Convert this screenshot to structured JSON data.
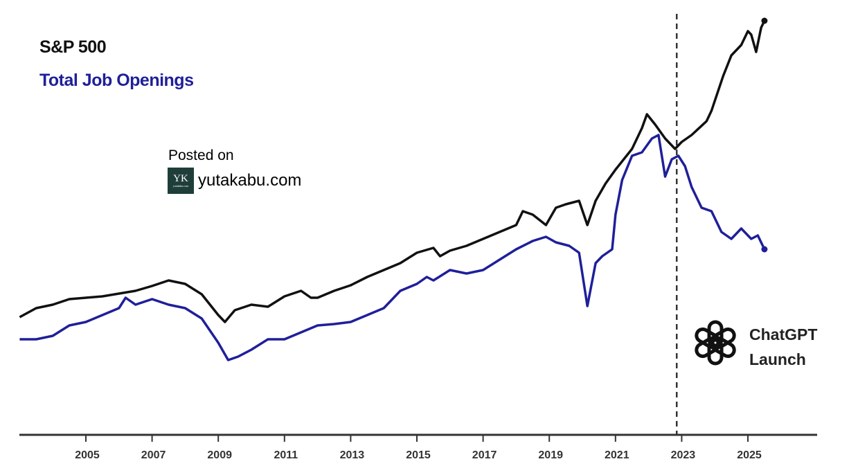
{
  "chart_data": {
    "type": "line",
    "title": "",
    "xlabel": "",
    "ylabel": "",
    "xlim": [
      2003.0,
      2025.9
    ],
    "ylim": [
      0,
      600
    ],
    "grid": false,
    "x_ticks": [
      2005,
      2007,
      2009,
      2011,
      2013,
      2015,
      2017,
      2019,
      2021,
      2023,
      2025
    ],
    "legend": {
      "placement": "top-left",
      "entries": [
        "S&P 500",
        "Total Job Openings"
      ]
    },
    "series": [
      {
        "name": "S&P 500",
        "color": "#111111",
        "x": [
          2003.0,
          2003.5,
          2004,
          2004.5,
          2005,
          2005.5,
          2006,
          2006.5,
          2007,
          2007.5,
          2008,
          2008.5,
          2009.0,
          2009.2,
          2009.5,
          2010,
          2010.5,
          2011,
          2011.5,
          2011.8,
          2012,
          2012.5,
          2013,
          2013.5,
          2014,
          2014.5,
          2015,
          2015.5,
          2015.7,
          2016,
          2016.5,
          2017,
          2017.5,
          2018,
          2018.2,
          2018.5,
          2018.9,
          2019.2,
          2019.5,
          2019.9,
          2020.15,
          2020.4,
          2020.7,
          2021,
          2021.5,
          2021.8,
          2021.95,
          2022.2,
          2022.5,
          2022.8,
          2023.0,
          2023.3,
          2023.75,
          2023.9,
          2024.25,
          2024.5,
          2024.8,
          2025.0,
          2025.1,
          2025.25,
          2025.4,
          2025.5
        ],
        "y": [
          170,
          183,
          188,
          196,
          198,
          200,
          204,
          208,
          215,
          223,
          218,
          203,
          173,
          163,
          180,
          188,
          185,
          200,
          208,
          198,
          198,
          208,
          216,
          228,
          238,
          248,
          263,
          270,
          258,
          266,
          273,
          283,
          293,
          303,
          323,
          318,
          303,
          328,
          333,
          338,
          303,
          338,
          363,
          383,
          413,
          443,
          463,
          448,
          428,
          413,
          423,
          433,
          453,
          468,
          518,
          548,
          563,
          583,
          578,
          553,
          588,
          598
        ]
      },
      {
        "name": "Total Job Openings",
        "color": "#1f1f9a",
        "x": [
          2003.0,
          2003.5,
          2004,
          2004.5,
          2005,
          2005.5,
          2006,
          2006.2,
          2006.5,
          2007,
          2007.5,
          2008,
          2008.5,
          2009.0,
          2009.3,
          2009.6,
          2010,
          2010.5,
          2011,
          2011.5,
          2012,
          2012.5,
          2013,
          2013.5,
          2014,
          2014.5,
          2015,
          2015.3,
          2015.5,
          2016,
          2016.5,
          2017,
          2017.5,
          2018,
          2018.5,
          2018.9,
          2019.2,
          2019.6,
          2019.9,
          2020.15,
          2020.4,
          2020.6,
          2020.9,
          2021.0,
          2021.2,
          2021.5,
          2021.8,
          2022.1,
          2022.3,
          2022.5,
          2022.7,
          2022.9,
          2023.1,
          2023.3,
          2023.6,
          2023.9,
          2024.2,
          2024.5,
          2024.8,
          2025.1,
          2025.3,
          2025.5
        ],
        "y": [
          138,
          138,
          143,
          158,
          163,
          173,
          183,
          198,
          188,
          196,
          188,
          183,
          168,
          133,
          108,
          113,
          123,
          138,
          138,
          148,
          158,
          160,
          163,
          173,
          183,
          208,
          218,
          228,
          223,
          238,
          233,
          238,
          253,
          268,
          280,
          286,
          278,
          273,
          263,
          186,
          248,
          258,
          268,
          318,
          368,
          403,
          408,
          428,
          433,
          373,
          398,
          403,
          388,
          358,
          328,
          323,
          293,
          283,
          298,
          283,
          288,
          268
        ]
      }
    ],
    "annotations": [
      {
        "type": "vline",
        "x": 2022.85,
        "style": "dashed",
        "label_lines": [
          "ChatGPT",
          "Launch"
        ],
        "icon": "openai-logo-icon"
      }
    ]
  },
  "watermark": {
    "posted_label": "Posted on",
    "site": "yutakabu.com",
    "logo_letters": "YK",
    "logo_small": "yutakabu.com"
  }
}
